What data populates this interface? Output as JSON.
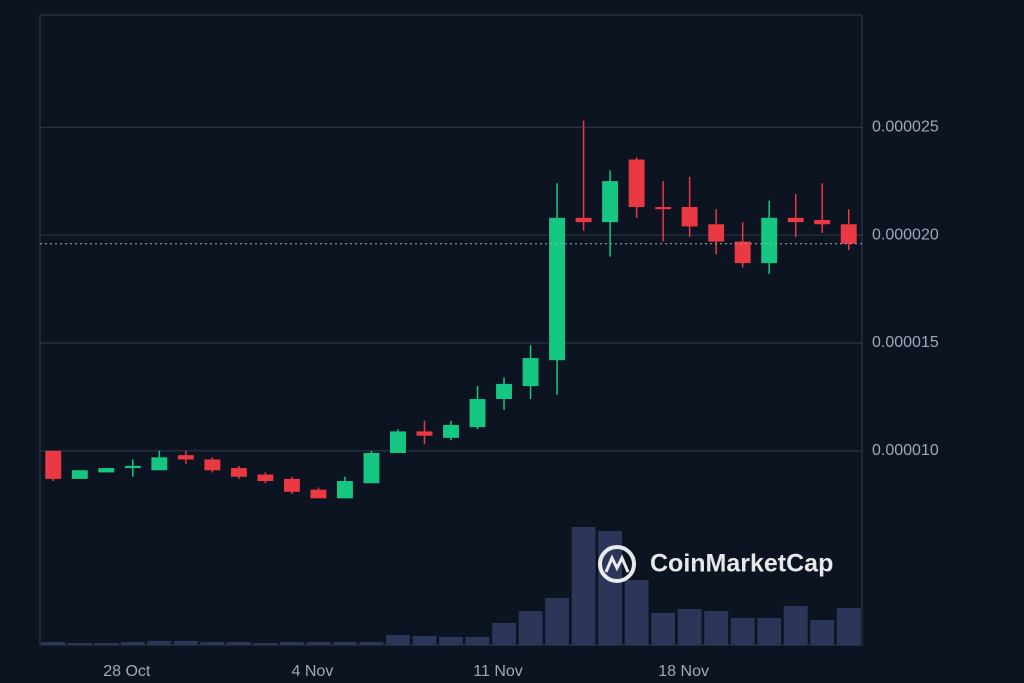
{
  "chart_data": {
    "type": "candlestick",
    "categories": [
      null,
      null,
      null,
      "28 Oct",
      null,
      null,
      null,
      null,
      null,
      null,
      "4 Nov",
      null,
      null,
      null,
      null,
      null,
      null,
      "11 Nov",
      null,
      null,
      null,
      null,
      null,
      null,
      "18 Nov",
      null,
      null,
      null,
      null,
      null,
      null
    ],
    "open": [
      1e-05,
      8.7e-06,
      9e-06,
      9.2e-06,
      9.1e-06,
      9.8e-06,
      9.6e-06,
      9.2e-06,
      8.9e-06,
      8.7e-06,
      8.2e-06,
      7.8e-06,
      8.5e-06,
      9.9e-06,
      1.09e-05,
      1.06e-05,
      1.11e-05,
      1.24e-05,
      1.3e-05,
      1.42e-05,
      2.08e-05,
      2.06e-05,
      2.35e-05,
      2.13e-05,
      2.13e-05,
      2.05e-05,
      1.97e-05,
      1.87e-05,
      2.08e-05,
      2.07e-05,
      2.05e-05
    ],
    "high": [
      1e-05,
      9.1e-06,
      9.2e-06,
      9.6e-06,
      1e-05,
      1e-05,
      9.7e-06,
      9.3e-06,
      9e-06,
      8.8e-06,
      8.3e-06,
      8.8e-06,
      1e-05,
      1.1e-05,
      1.14e-05,
      1.14e-05,
      1.3e-05,
      1.34e-05,
      1.49e-05,
      2.24e-05,
      2.53e-05,
      2.3e-05,
      2.36e-05,
      2.25e-05,
      2.27e-05,
      2.12e-05,
      2.06e-05,
      2.16e-05,
      2.19e-05,
      2.24e-05,
      2.12e-05
    ],
    "low": [
      8.6e-06,
      8.7e-06,
      9e-06,
      8.8e-06,
      9.1e-06,
      9.4e-06,
      9e-06,
      8.7e-06,
      8.5e-06,
      8e-06,
      7.8e-06,
      7.8e-06,
      8.5e-06,
      9.9e-06,
      1.03e-05,
      1.05e-05,
      1.1e-05,
      1.19e-05,
      1.24e-05,
      1.26e-05,
      2.02e-05,
      1.9e-05,
      2.08e-05,
      1.97e-05,
      1.99e-05,
      1.91e-05,
      1.85e-05,
      1.82e-05,
      1.99e-05,
      2.01e-05,
      1.93e-05
    ],
    "close": [
      8.7e-06,
      9.1e-06,
      9.2e-06,
      9.3e-06,
      9.7e-06,
      9.6e-06,
      9.1e-06,
      8.8e-06,
      8.6e-06,
      8.1e-06,
      7.8e-06,
      8.6e-06,
      9.9e-06,
      1.09e-05,
      1.07e-05,
      1.12e-05,
      1.24e-05,
      1.31e-05,
      1.43e-05,
      2.08e-05,
      2.06e-05,
      2.25e-05,
      2.13e-05,
      2.12e-05,
      2.04e-05,
      1.97e-05,
      1.87e-05,
      2.08e-05,
      2.06e-05,
      2.05e-05,
      1.96e-05
    ],
    "volume": [
      3,
      2,
      2,
      3,
      4,
      4,
      3,
      3,
      2,
      3,
      3,
      3,
      3,
      10,
      9,
      8,
      8,
      22,
      34,
      47,
      118,
      114,
      65,
      32,
      36,
      34,
      27,
      27,
      39,
      25,
      37
    ],
    "volume_lim": [
      0,
      630
    ],
    "up_color": "#16c784",
    "down_color": "#ea3943",
    "volume_color": "#2b3659",
    "ylim": [
      1e-06,
      3.02e-05
    ],
    "yticks": [
      {
        "value": 1e-05,
        "label": "0.000010"
      },
      1.5e-05,
      {
        "value": 2e-05,
        "label": "0.000020"
      },
      2.5e-05
    ],
    "grid": true,
    "last_price_line": true,
    "watermark": "CoinMarketCap"
  }
}
